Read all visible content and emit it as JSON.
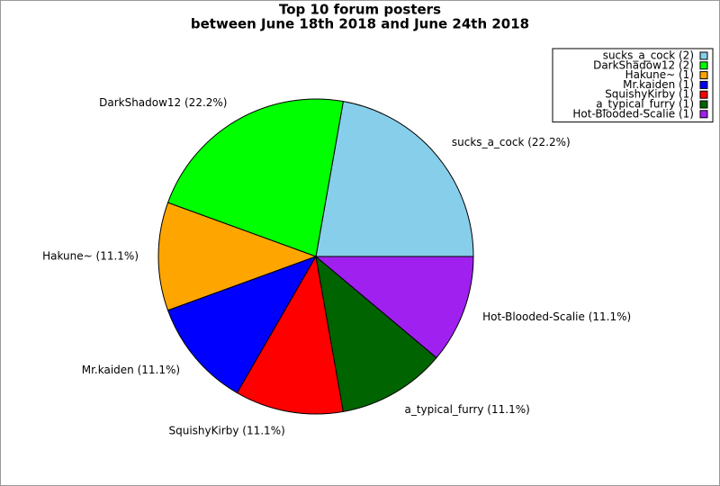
{
  "chart_data": {
    "type": "pie",
    "title": "Top 10 forum posters",
    "subtitle": "between June 18th 2018 and June 24th 2018",
    "values": [
      2,
      2,
      1,
      1,
      1,
      1,
      1
    ],
    "colors": [
      "#87ceeb",
      "#00ff00",
      "#ffa500",
      "#0000ff",
      "#ff0000",
      "#006400",
      "#a020f0"
    ],
    "legend_labels": [
      "sucks_a_cock (2)",
      "DarkShadow12 (2)",
      "Hakune~ (1)",
      "Mr.kaiden (1)",
      "SquishyKirby (1)",
      "a_typical_furry (1)",
      "Hot-Blooded-Scalie (1)"
    ],
    "slice_labels": [
      "sucks_a_cock (22.2%)",
      "DarkShadow12 (22.2%)",
      "Hakune~ (11.1%)",
      "Mr.kaiden (11.1%)",
      "SquishyKirby (11.1%)",
      "a_typical_furry (11.1%)",
      "Hot-Blooded-Scalie (11.1%)"
    ],
    "legend": "top-right"
  }
}
